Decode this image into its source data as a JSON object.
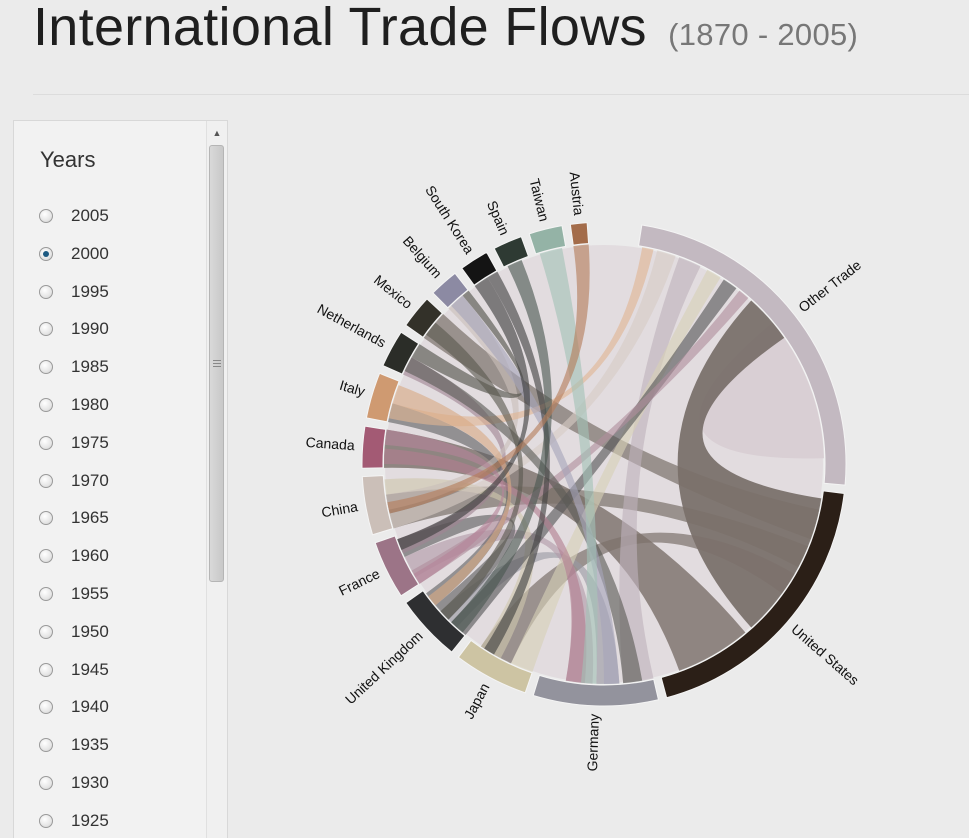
{
  "header": {
    "title": "International Trade Flows",
    "subtitle": "(1870 - 2005)"
  },
  "sidebar": {
    "heading": "Years",
    "selected": "2000",
    "years": [
      "2005",
      "2000",
      "1995",
      "1990",
      "1985",
      "1980",
      "1975",
      "1970",
      "1965",
      "1960",
      "1955",
      "1950",
      "1945",
      "1940",
      "1935",
      "1930",
      "1925"
    ]
  },
  "chart_data": {
    "type": "chord",
    "year": "2000",
    "groups": [
      {
        "name": "Other Trade",
        "color": "#c3b9c1"
      },
      {
        "name": "United States",
        "color": "#2b1f17"
      },
      {
        "name": "Germany",
        "color": "#93939d"
      },
      {
        "name": "Japan",
        "color": "#cdc4a3"
      },
      {
        "name": "United Kingdom",
        "color": "#2e2f31"
      },
      {
        "name": "France",
        "color": "#9c7487"
      },
      {
        "name": "China",
        "color": "#cbbfb8"
      },
      {
        "name": "Canada",
        "color": "#a35a74"
      },
      {
        "name": "Italy",
        "color": "#cf9a71"
      },
      {
        "name": "Netherlands",
        "color": "#2b2d28"
      },
      {
        "name": "Mexico",
        "color": "#333129"
      },
      {
        "name": "Belgium",
        "color": "#8c8aa3"
      },
      {
        "name": "South Korea",
        "color": "#141414"
      },
      {
        "name": "Spain",
        "color": "#2e3a33"
      },
      {
        "name": "Taiwan",
        "color": "#94b3a6"
      },
      {
        "name": "Austria",
        "color": "#a36c4a"
      }
    ]
  }
}
